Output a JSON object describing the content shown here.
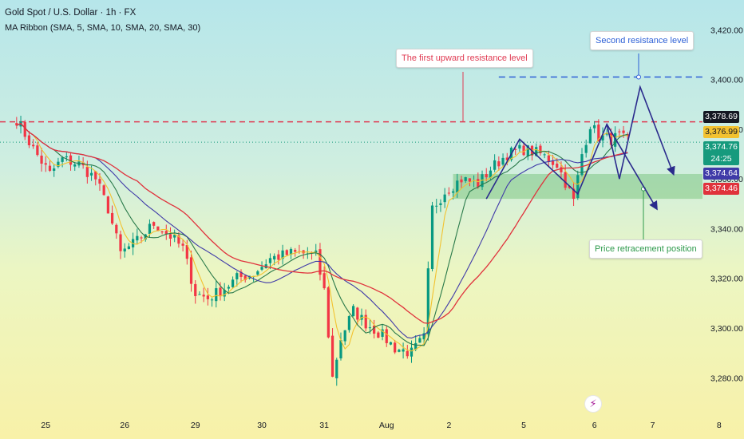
{
  "header": {
    "symbol_title": "Gold Spot / U.S. Dollar · 1h · FX",
    "indicator": "MA Ribbon (SMA, 5, SMA, 10, SMA, 20, SMA, 30)"
  },
  "annotations": {
    "resistance_1": "The first upward resistance level",
    "resistance_2": "Second resistance level",
    "retracement": "Price retracement position"
  },
  "price_labels": {
    "p1": "3,378.69",
    "p2": "3,376.99",
    "p3": "3,374.76",
    "countdown": "24:25",
    "p4": "3,374.64",
    "p5": "3,374.46"
  },
  "colors": {
    "up": "#089981",
    "down": "#f23645",
    "ma_fast": "#f2c230",
    "ma_10": "#2a7a4a",
    "ma_20": "#3f3aa8",
    "ma_30": "#e0323c",
    "res1": "#e03a52",
    "res2": "#2c5fd6",
    "zone": "#4caf50",
    "arrows": "#2a2a8c"
  },
  "chart_data": {
    "type": "candlestick",
    "y_axis": {
      "ticks": [
        3420,
        3400,
        3380,
        3360,
        3340,
        3320,
        3300,
        3280
      ],
      "tick_labels": [
        "3,420.00",
        "3,400.00",
        "3,380.00",
        "3,360.00",
        "3,340.00",
        "3,320.00",
        "3,300.00",
        "3,280.00"
      ],
      "range": [
        3265,
        3432
      ]
    },
    "x_axis": {
      "range": [
        -0.4,
        16.5
      ],
      "ticks": [
        {
          "x": 0.7,
          "label": "25"
        },
        {
          "x": 2.6,
          "label": "26"
        },
        {
          "x": 4.3,
          "label": "29"
        },
        {
          "x": 5.9,
          "label": "30"
        },
        {
          "x": 7.4,
          "label": "31"
        },
        {
          "x": 8.9,
          "label": "Aug"
        },
        {
          "x": 10.4,
          "label": "2"
        },
        {
          "x": 12.2,
          "label": "5"
        },
        {
          "x": 13.9,
          "label": "6"
        },
        {
          "x": 15.3,
          "label": "7"
        },
        {
          "x": 16.9,
          "label": "8"
        }
      ]
    },
    "close_path": [
      [
        0,
        3384
      ],
      [
        0.4,
        3372
      ],
      [
        0.8,
        3362
      ],
      [
        1.1,
        3368
      ],
      [
        1.5,
        3366
      ],
      [
        1.9,
        3360
      ],
      [
        2.2,
        3348
      ],
      [
        2.5,
        3330
      ],
      [
        2.9,
        3335
      ],
      [
        3.3,
        3342
      ],
      [
        3.7,
        3337
      ],
      [
        4.0,
        3332
      ],
      [
        4.3,
        3314
      ],
      [
        4.6,
        3312
      ],
      [
        5.0,
        3316
      ],
      [
        5.3,
        3320
      ],
      [
        5.7,
        3322
      ],
      [
        6.1,
        3328
      ],
      [
        6.6,
        3330
      ],
      [
        7.0,
        3330
      ],
      [
        7.2,
        3329
      ],
      [
        7.4,
        3315
      ],
      [
        7.6,
        3280
      ],
      [
        7.8,
        3296
      ],
      [
        8.1,
        3307
      ],
      [
        8.4,
        3302
      ],
      [
        8.8,
        3297
      ],
      [
        9.1,
        3292
      ],
      [
        9.5,
        3290
      ],
      [
        9.8,
        3296
      ],
      [
        10.0,
        3348
      ],
      [
        10.3,
        3355
      ],
      [
        10.7,
        3360
      ],
      [
        11.1,
        3358
      ],
      [
        11.4,
        3364
      ],
      [
        11.8,
        3370
      ],
      [
        12.2,
        3372
      ],
      [
        12.6,
        3370
      ],
      [
        13.0,
        3366
      ],
      [
        13.3,
        3355
      ],
      [
        13.4,
        3351
      ],
      [
        13.6,
        3370
      ],
      [
        13.8,
        3382
      ],
      [
        14.0,
        3377
      ],
      [
        14.3,
        3376
      ],
      [
        14.5,
        3377
      ],
      [
        14.7,
        3375
      ]
    ],
    "series": [
      {
        "name": "SMA 5",
        "window": 5
      },
      {
        "name": "SMA 10",
        "window": 10
      },
      {
        "name": "SMA 20",
        "window": 20
      },
      {
        "name": "SMA 30",
        "window": 30
      }
    ],
    "levels": {
      "resistance_1": 3383,
      "resistance_2": 3401,
      "current_price": 3374.8,
      "retracement_zone": [
        3352,
        3362
      ],
      "zone_x_start": 10.5
    },
    "projection_paths": [
      [
        [
          11.3,
          3352
        ],
        [
          12.1,
          3376
        ],
        [
          13.5,
          3354
        ],
        [
          14.2,
          3382
        ],
        [
          15.4,
          3348
        ]
      ],
      [
        [
          14.2,
          3382
        ],
        [
          14.5,
          3360
        ],
        [
          15.0,
          3397
        ],
        [
          15.8,
          3362
        ]
      ]
    ]
  }
}
